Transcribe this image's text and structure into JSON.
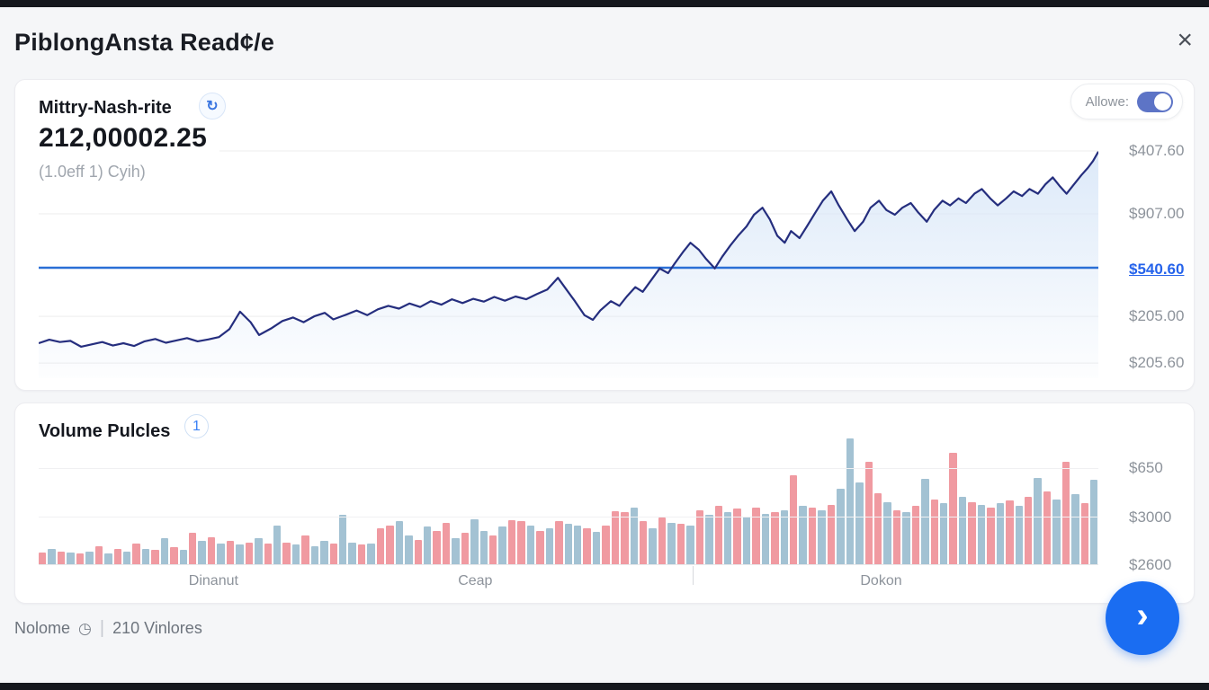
{
  "header": {
    "title": "PiblongAnsta Read¢/e",
    "close_glyph": "×"
  },
  "price_card": {
    "title": "Mittry-Nash-rite",
    "refresh_glyph": "↻",
    "toggle_label": "Allowe:",
    "toggle_on": true,
    "price": "212,00002.25",
    "subtitle": "(1.0eff 1) Cyih)"
  },
  "volume_card": {
    "title": "Volume Pulcles",
    "badge": "1"
  },
  "footer": {
    "label_left": "Nolome",
    "clock_glyph": "◷",
    "separator": "|",
    "label_right": "210 Vinlores",
    "fab_glyph": "›"
  },
  "colors": {
    "line_navy": "#252e7e",
    "reference_line_blue": "#2a6fd6",
    "area_fill_top": "#d4e4f7",
    "bar_red": "#f09aa1",
    "bar_blue": "#a3c2d3",
    "current_tick_blue": "#2563eb",
    "fab_blue": "#1a6df2",
    "toggle_blue": "#5d74c6",
    "gridline": "#ededee"
  },
  "chart_data": [
    {
      "type": "area",
      "title": "Mittry-Nash-rite price line",
      "legend": "none",
      "grid": true,
      "y_ticks": [
        {
          "label": "$407.60",
          "pos_pct": 2.7,
          "current": false
        },
        {
          "label": "$907.00",
          "pos_pct": 29.6,
          "current": false
        },
        {
          "label": "$540.60",
          "pos_pct": 53.5,
          "current": true
        },
        {
          "label": "$205.00",
          "pos_pct": 73.5,
          "current": false
        },
        {
          "label": "$205.60",
          "pos_pct": 93.5,
          "current": false
        }
      ],
      "reference_line_pos_pct": 52.7,
      "points_unit": "x = % of time axis, y = % of plot height above baseline",
      "points": [
        [
          0,
          15
        ],
        [
          1,
          16.5
        ],
        [
          2,
          15.5
        ],
        [
          3,
          16
        ],
        [
          4,
          13.5
        ],
        [
          5,
          14.5
        ],
        [
          6,
          15.5
        ],
        [
          7,
          14
        ],
        [
          8,
          15
        ],
        [
          9,
          13.8
        ],
        [
          10,
          15.8
        ],
        [
          11,
          16.8
        ],
        [
          12,
          15.2
        ],
        [
          13,
          16.2
        ],
        [
          14,
          17.2
        ],
        [
          15,
          15.8
        ],
        [
          16,
          16.6
        ],
        [
          17,
          17.6
        ],
        [
          18,
          21
        ],
        [
          19,
          28.5
        ],
        [
          20,
          24
        ],
        [
          20.8,
          18.5
        ],
        [
          22,
          21.5
        ],
        [
          23,
          24.5
        ],
        [
          24,
          26
        ],
        [
          25,
          24
        ],
        [
          26,
          26.5
        ],
        [
          27,
          28
        ],
        [
          27.8,
          25.2
        ],
        [
          29,
          27.2
        ],
        [
          30,
          29
        ],
        [
          31,
          27
        ],
        [
          32,
          29.5
        ],
        [
          33,
          31
        ],
        [
          34,
          29.8
        ],
        [
          35,
          32
        ],
        [
          36,
          30.5
        ],
        [
          37,
          33
        ],
        [
          38,
          31.5
        ],
        [
          39,
          33.8
        ],
        [
          40,
          32.2
        ],
        [
          41,
          34
        ],
        [
          42,
          32.8
        ],
        [
          43,
          34.8
        ],
        [
          44,
          33.2
        ],
        [
          45,
          35
        ],
        [
          46,
          33.8
        ],
        [
          47,
          36
        ],
        [
          48,
          38
        ],
        [
          49,
          43
        ],
        [
          49.8,
          38
        ],
        [
          50.6,
          33
        ],
        [
          51.5,
          27
        ],
        [
          52.3,
          25
        ],
        [
          53,
          29
        ],
        [
          54,
          33
        ],
        [
          54.8,
          31
        ],
        [
          55.5,
          35
        ],
        [
          56.3,
          39
        ],
        [
          57,
          37
        ],
        [
          57.8,
          42
        ],
        [
          58.6,
          47
        ],
        [
          59.4,
          45
        ],
        [
          60,
          49
        ],
        [
          60.8,
          54
        ],
        [
          61.5,
          58
        ],
        [
          62.3,
          55
        ],
        [
          63,
          51
        ],
        [
          63.8,
          47
        ],
        [
          64.5,
          52
        ],
        [
          65.3,
          57
        ],
        [
          66,
          61
        ],
        [
          66.8,
          65
        ],
        [
          67.5,
          70
        ],
        [
          68.3,
          73
        ],
        [
          69,
          68
        ],
        [
          69.7,
          61
        ],
        [
          70.4,
          58
        ],
        [
          71,
          63
        ],
        [
          71.8,
          60
        ],
        [
          72.5,
          65
        ],
        [
          73.3,
          71
        ],
        [
          74,
          76
        ],
        [
          74.8,
          80
        ],
        [
          75.5,
          74
        ],
        [
          76.3,
          68
        ],
        [
          77,
          63
        ],
        [
          77.8,
          67
        ],
        [
          78.5,
          73
        ],
        [
          79.3,
          76
        ],
        [
          80,
          72
        ],
        [
          80.8,
          70
        ],
        [
          81.5,
          73
        ],
        [
          82.3,
          75
        ],
        [
          83,
          71
        ],
        [
          83.8,
          67
        ],
        [
          84.5,
          72
        ],
        [
          85.3,
          76
        ],
        [
          86,
          74
        ],
        [
          86.8,
          77
        ],
        [
          87.5,
          75
        ],
        [
          88.3,
          79
        ],
        [
          89,
          81
        ],
        [
          89.8,
          77
        ],
        [
          90.5,
          74
        ],
        [
          91.3,
          77
        ],
        [
          92,
          80
        ],
        [
          92.8,
          78
        ],
        [
          93.5,
          81
        ],
        [
          94.3,
          79
        ],
        [
          95,
          83
        ],
        [
          95.7,
          86
        ],
        [
          96.4,
          82
        ],
        [
          97,
          79
        ],
        [
          97.7,
          83
        ],
        [
          98.4,
          87
        ],
        [
          99,
          90
        ],
        [
          99.5,
          93
        ],
        [
          100,
          97
        ]
      ]
    },
    {
      "type": "bar",
      "title": "Volume Pulcles",
      "grid": true,
      "y_ticks": [
        {
          "label": "$650",
          "pos_pct": 25.5
        },
        {
          "label": "$3000",
          "pos_pct": 63.4
        },
        {
          "label": "$2600",
          "pos_pct": 100
        }
      ],
      "x_labels": [
        {
          "label": "Dinanut",
          "pos_pct": 16.5
        },
        {
          "label": "Ceap",
          "pos_pct": 41.2
        },
        {
          "label": "Dokon",
          "pos_pct": 79.5
        }
      ],
      "x_tick_positions_pct": [
        61.7
      ],
      "bars_unit": "color r=red b=blue, value = % of plot height",
      "bars": [
        [
          "r",
          9
        ],
        [
          "b",
          12
        ],
        [
          "r",
          10
        ],
        [
          "b",
          9
        ],
        [
          "r",
          8
        ],
        [
          "b",
          10
        ],
        [
          "r",
          14
        ],
        [
          "b",
          8
        ],
        [
          "r",
          12
        ],
        [
          "b",
          10
        ],
        [
          "r",
          16
        ],
        [
          "b",
          12
        ],
        [
          "r",
          11
        ],
        [
          "b",
          20
        ],
        [
          "r",
          13
        ],
        [
          "b",
          11
        ],
        [
          "r",
          24
        ],
        [
          "b",
          18
        ],
        [
          "r",
          21
        ],
        [
          "b",
          16
        ],
        [
          "r",
          18
        ],
        [
          "b",
          15
        ],
        [
          "r",
          17
        ],
        [
          "b",
          20
        ],
        [
          "r",
          16
        ],
        [
          "b",
          30
        ],
        [
          "r",
          17
        ],
        [
          "b",
          15
        ],
        [
          "r",
          22
        ],
        [
          "b",
          14
        ],
        [
          "b",
          18
        ],
        [
          "r",
          16
        ],
        [
          "b",
          38
        ],
        [
          "b",
          17
        ],
        [
          "r",
          15
        ],
        [
          "b",
          16
        ],
        [
          "r",
          28
        ],
        [
          "r",
          30
        ],
        [
          "b",
          33
        ],
        [
          "b",
          22
        ],
        [
          "r",
          19
        ],
        [
          "b",
          29
        ],
        [
          "r",
          26
        ],
        [
          "r",
          32
        ],
        [
          "b",
          20
        ],
        [
          "r",
          24
        ],
        [
          "b",
          35
        ],
        [
          "b",
          26
        ],
        [
          "r",
          22
        ],
        [
          "b",
          29
        ],
        [
          "r",
          34
        ],
        [
          "r",
          33
        ],
        [
          "b",
          30
        ],
        [
          "r",
          26
        ],
        [
          "b",
          28
        ],
        [
          "r",
          33
        ],
        [
          "b",
          31
        ],
        [
          "b",
          30
        ],
        [
          "r",
          28
        ],
        [
          "b",
          25
        ],
        [
          "r",
          30
        ],
        [
          "r",
          41
        ],
        [
          "r",
          40
        ],
        [
          "b",
          44
        ],
        [
          "r",
          33
        ],
        [
          "b",
          28
        ],
        [
          "r",
          36
        ],
        [
          "b",
          32
        ],
        [
          "r",
          31
        ],
        [
          "b",
          30
        ],
        [
          "r",
          42
        ],
        [
          "b",
          38
        ],
        [
          "r",
          45
        ],
        [
          "b",
          40
        ],
        [
          "r",
          43
        ],
        [
          "b",
          37
        ],
        [
          "r",
          44
        ],
        [
          "b",
          39
        ],
        [
          "r",
          40
        ],
        [
          "b",
          42
        ],
        [
          "r",
          69
        ],
        [
          "b",
          45
        ],
        [
          "r",
          44
        ],
        [
          "b",
          42
        ],
        [
          "r",
          46
        ],
        [
          "b",
          58
        ],
        [
          "b",
          97
        ],
        [
          "b",
          63
        ],
        [
          "r",
          79
        ],
        [
          "r",
          55
        ],
        [
          "b",
          48
        ],
        [
          "r",
          42
        ],
        [
          "b",
          40
        ],
        [
          "r",
          45
        ],
        [
          "b",
          66
        ],
        [
          "r",
          50
        ],
        [
          "b",
          47
        ],
        [
          "r",
          86
        ],
        [
          "b",
          52
        ],
        [
          "r",
          48
        ],
        [
          "b",
          46
        ],
        [
          "r",
          44
        ],
        [
          "b",
          47
        ],
        [
          "r",
          49
        ],
        [
          "b",
          45
        ],
        [
          "r",
          52
        ],
        [
          "b",
          67
        ],
        [
          "r",
          56
        ],
        [
          "b",
          50
        ],
        [
          "r",
          79
        ],
        [
          "b",
          54
        ],
        [
          "r",
          47
        ],
        [
          "b",
          65
        ]
      ]
    }
  ]
}
